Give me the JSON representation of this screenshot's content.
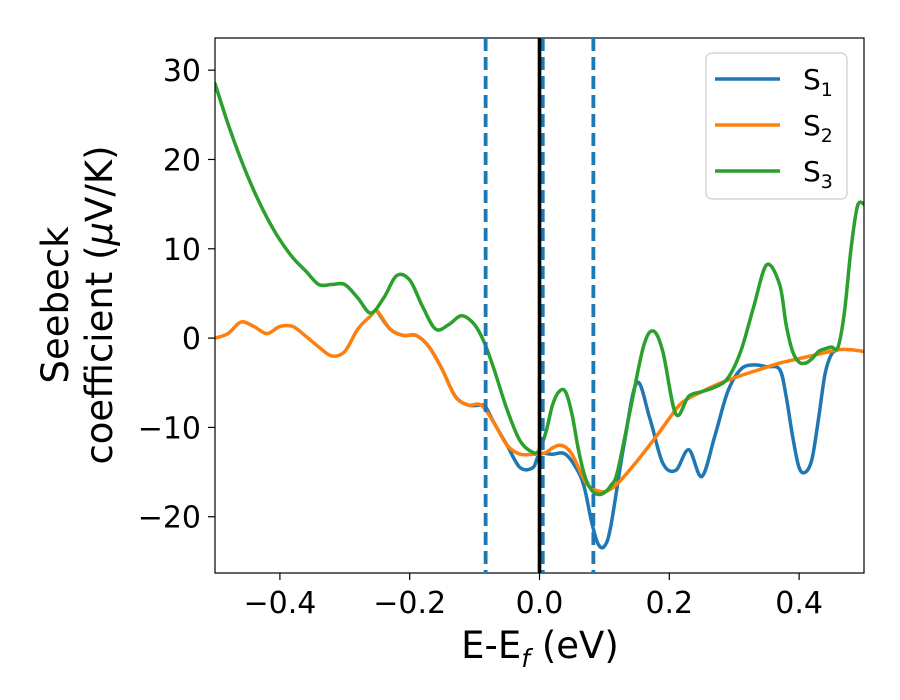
{
  "chart_data": {
    "type": "line",
    "title": "",
    "xlabel": "E-E",
    "xlabel_sub": "f",
    "xlabel_unit": " (eV)",
    "ylabel_line1": "Seebeck",
    "ylabel_line2_a": "coefficient  (",
    "ylabel_line2_mu": "μ",
    "ylabel_line2_b": "V/K)",
    "xlim": [
      -0.5,
      0.5
    ],
    "ylim": [
      -26.3,
      33.6
    ],
    "xticks": [
      -0.4,
      -0.2,
      0.0,
      0.2,
      0.4
    ],
    "xtick_labels": [
      "−0.4",
      "−0.2",
      "0.0",
      "0.2",
      "0.4"
    ],
    "yticks": [
      30,
      20,
      10,
      0,
      -10,
      -20
    ],
    "ytick_labels": [
      "30",
      "20",
      "10",
      "0",
      "−10",
      "−20"
    ],
    "grid": false,
    "legend_position": "top-right",
    "vlines": [
      {
        "x": -0.083,
        "style": "dashed",
        "color": "#1f77b4"
      },
      {
        "x": 0.005,
        "style": "dashed",
        "color": "#1f77b4"
      },
      {
        "x": 0.083,
        "style": "dashed",
        "color": "#1f77b4"
      },
      {
        "x": 0.0,
        "style": "solid",
        "color": "#000000"
      }
    ],
    "series": [
      {
        "name": "S",
        "sub": "1",
        "color": "#1f77b4",
        "x": [
          -0.25,
          -0.23,
          -0.21,
          -0.19,
          -0.17,
          -0.15,
          -0.13,
          -0.11,
          -0.09,
          -0.083,
          -0.07,
          -0.05,
          -0.03,
          -0.01,
          0.0,
          0.02,
          0.04,
          0.06,
          0.07,
          0.08,
          0.09,
          0.1,
          0.11,
          0.13,
          0.15,
          0.17,
          0.19,
          0.21,
          0.23,
          0.25,
          0.27,
          0.29,
          0.31,
          0.33,
          0.35,
          0.37,
          0.38,
          0.39,
          0.4,
          0.41,
          0.42,
          0.43,
          0.44,
          0.45,
          0.46
        ],
        "y": [
          3.0,
          1.0,
          0.3,
          0.3,
          -1.0,
          -3.5,
          -6.5,
          -7.5,
          -7.5,
          -7.7,
          -9.5,
          -12.0,
          -14.5,
          -14.5,
          -13.0,
          -13.0,
          -13.0,
          -15.0,
          -17.0,
          -20.5,
          -23.0,
          -23.3,
          -21.0,
          -12.0,
          -5.0,
          -9.0,
          -14.0,
          -14.8,
          -12.5,
          -15.5,
          -11.0,
          -6.0,
          -3.5,
          -3.0,
          -3.2,
          -3.5,
          -6.5,
          -11.0,
          -14.5,
          -15.0,
          -13.5,
          -9.0,
          -4.0,
          -1.8,
          -1.3
        ]
      },
      {
        "name": "S",
        "sub": "2",
        "color": "#ff7f0e",
        "x": [
          -0.5,
          -0.48,
          -0.46,
          -0.44,
          -0.42,
          -0.4,
          -0.38,
          -0.36,
          -0.34,
          -0.32,
          -0.3,
          -0.28,
          -0.26,
          -0.25,
          -0.23,
          -0.21,
          -0.19,
          -0.17,
          -0.15,
          -0.13,
          -0.11,
          -0.09,
          -0.07,
          -0.05,
          -0.03,
          -0.01,
          0.0,
          0.01,
          0.02,
          0.03,
          0.04,
          0.05,
          0.06,
          0.07,
          0.08,
          0.1,
          0.12,
          0.15,
          0.18,
          0.2,
          0.22,
          0.25,
          0.28,
          0.31,
          0.34,
          0.37,
          0.4,
          0.43,
          0.46,
          0.48,
          0.5
        ],
        "y": [
          0.0,
          0.5,
          1.8,
          1.3,
          0.5,
          1.3,
          1.3,
          0.2,
          -1.0,
          -2.0,
          -1.5,
          1.0,
          2.5,
          3.0,
          1.0,
          0.3,
          0.3,
          -1.0,
          -3.5,
          -6.5,
          -7.5,
          -7.5,
          -9.5,
          -12.0,
          -13.0,
          -13.0,
          -13.0,
          -12.8,
          -12.3,
          -12.0,
          -12.2,
          -13.0,
          -14.5,
          -16.0,
          -16.8,
          -17.2,
          -16.3,
          -13.8,
          -11.0,
          -9.0,
          -7.2,
          -6.0,
          -5.0,
          -4.2,
          -3.5,
          -2.8,
          -2.3,
          -1.8,
          -1.3,
          -1.3,
          -1.5
        ]
      },
      {
        "name": "S",
        "sub": "3",
        "color": "#2ca02c",
        "x": [
          -0.5,
          -0.48,
          -0.46,
          -0.44,
          -0.42,
          -0.4,
          -0.38,
          -0.36,
          -0.34,
          -0.32,
          -0.3,
          -0.28,
          -0.26,
          -0.24,
          -0.22,
          -0.2,
          -0.18,
          -0.16,
          -0.14,
          -0.12,
          -0.1,
          -0.085,
          -0.07,
          -0.05,
          -0.03,
          -0.01,
          0.0,
          0.01,
          0.02,
          0.03,
          0.04,
          0.05,
          0.06,
          0.07,
          0.08,
          0.09,
          0.1,
          0.11,
          0.12,
          0.14,
          0.16,
          0.175,
          0.19,
          0.21,
          0.23,
          0.25,
          0.27,
          0.29,
          0.31,
          0.33,
          0.35,
          0.37,
          0.38,
          0.39,
          0.4,
          0.41,
          0.42,
          0.43,
          0.44,
          0.45,
          0.46,
          0.47,
          0.48,
          0.49,
          0.5
        ],
        "y": [
          28.5,
          24.0,
          20.0,
          16.5,
          13.5,
          11.0,
          9.0,
          7.5,
          6.0,
          6.0,
          6.0,
          4.5,
          2.8,
          4.5,
          7.0,
          6.5,
          3.5,
          1.0,
          1.5,
          2.5,
          1.5,
          -0.5,
          -3.5,
          -8.0,
          -11.5,
          -12.8,
          -12.5,
          -10.5,
          -7.5,
          -6.0,
          -6.0,
          -8.5,
          -12.5,
          -15.5,
          -17.0,
          -17.5,
          -17.3,
          -16.5,
          -15.0,
          -8.0,
          -1.0,
          0.8,
          -1.5,
          -8.5,
          -6.5,
          -6.0,
          -5.5,
          -4.5,
          -1.5,
          3.5,
          8.2,
          6.0,
          1.5,
          -1.5,
          -2.7,
          -2.8,
          -2.3,
          -1.5,
          -1.2,
          -1.0,
          -1.0,
          3.0,
          10.0,
          14.8,
          15.0
        ]
      }
    ]
  }
}
